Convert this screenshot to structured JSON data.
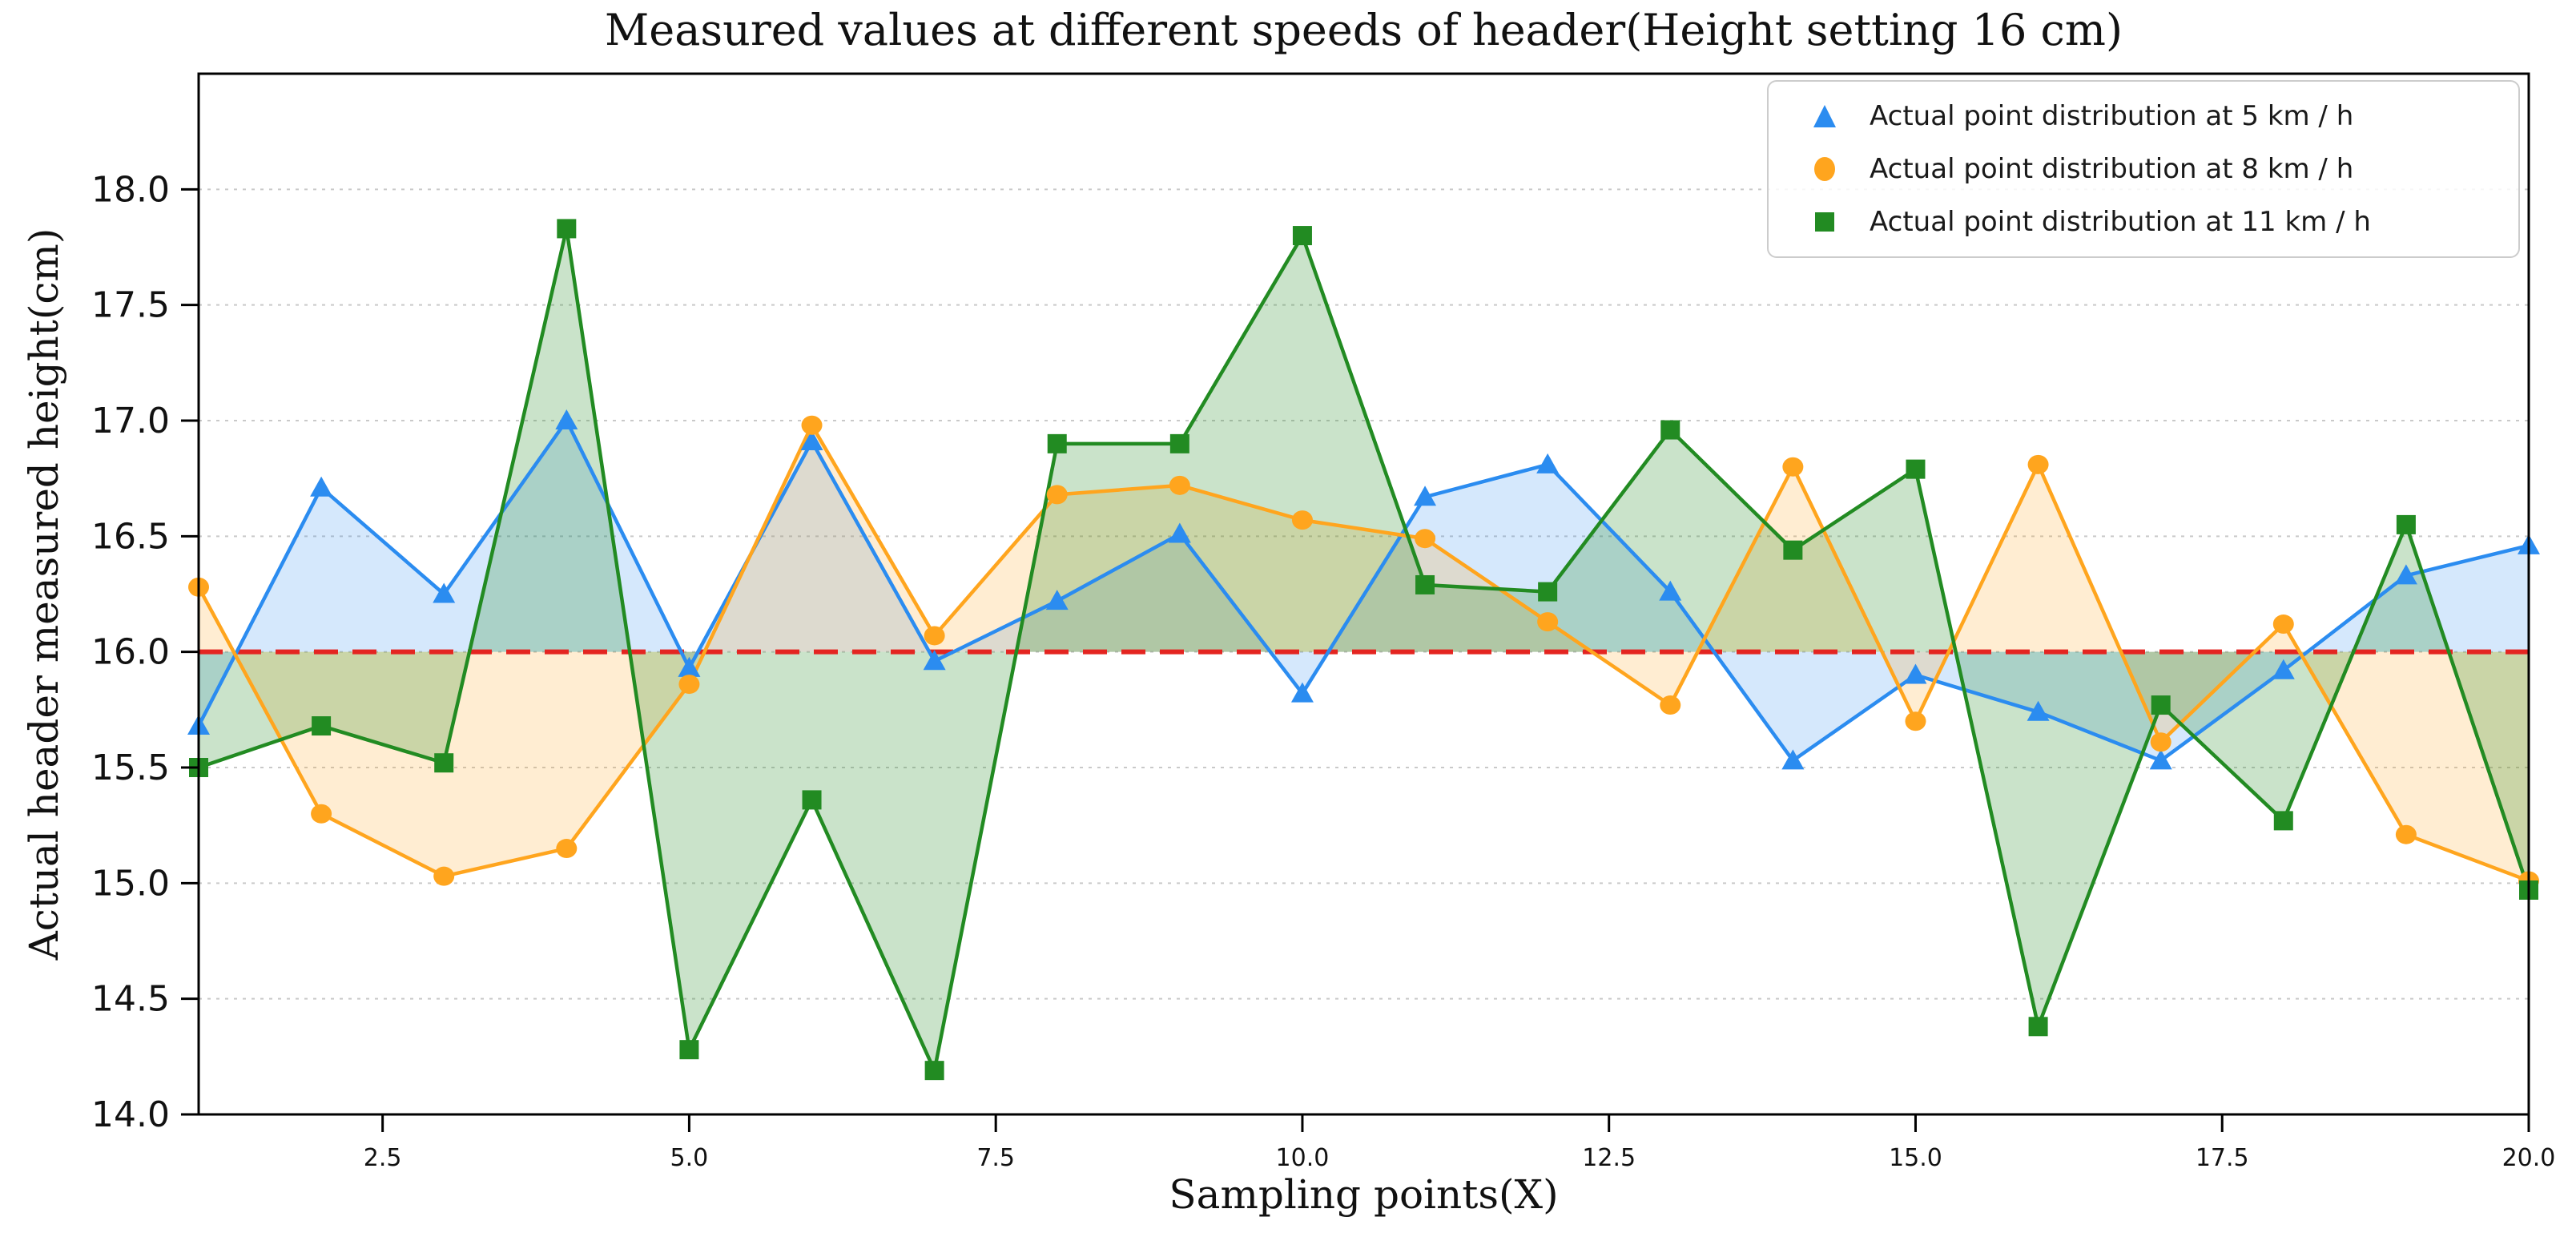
{
  "chart_data": {
    "type": "line",
    "title": "Measured values at different speeds of header(Height setting 16 cm)",
    "xlabel": "Sampling points(X)",
    "ylabel": "Actual header measured height(cm)",
    "xlim": [
      1,
      20
    ],
    "ylim": [
      14.0,
      18.5
    ],
    "x_ticks": [
      2.5,
      5.0,
      7.5,
      10.0,
      12.5,
      15.0,
      17.5,
      20.0
    ],
    "y_ticks": [
      14.0,
      14.5,
      15.0,
      15.5,
      16.0,
      16.5,
      17.0,
      17.5,
      18.0
    ],
    "grid": "horizontal-dashed",
    "grid_color": "#c9c9c9",
    "legend_position": "upper right",
    "reference_line": {
      "y": 16.0,
      "color": "#e42521",
      "style": "dashed"
    },
    "x": [
      1,
      2,
      3,
      4,
      5,
      6,
      7,
      8,
      9,
      10,
      11,
      12,
      13,
      14,
      15,
      16,
      17,
      18,
      19,
      20
    ],
    "series": [
      {
        "name": "Actual point distribution at 5 km / h",
        "color": "#2b8cf0",
        "marker": "triangle",
        "fill_to_reference": true,
        "fill_alpha": 0.2,
        "values": [
          15.68,
          16.71,
          16.25,
          17.0,
          15.93,
          16.91,
          15.96,
          16.22,
          16.51,
          15.82,
          16.67,
          16.81,
          16.26,
          15.53,
          15.9,
          15.74,
          15.53,
          15.92,
          16.33,
          16.46
        ]
      },
      {
        "name": "Actual point distribution at 8 km / h",
        "color": "#ffa51e",
        "marker": "circle",
        "fill_to_reference": true,
        "fill_alpha": 0.2,
        "values": [
          16.28,
          15.3,
          15.03,
          15.15,
          15.86,
          16.98,
          16.07,
          16.68,
          16.72,
          16.57,
          16.49,
          16.13,
          15.77,
          16.8,
          15.7,
          16.81,
          15.61,
          16.12,
          15.21,
          15.01
        ]
      },
      {
        "name": "Actual point distribution at 11 km / h",
        "color": "#228b22",
        "marker": "square",
        "fill_to_reference": true,
        "fill_alpha": 0.24,
        "values": [
          15.5,
          15.68,
          15.52,
          17.83,
          14.28,
          15.36,
          14.19,
          16.9,
          16.9,
          17.8,
          16.29,
          16.26,
          16.96,
          16.44,
          16.79,
          14.38,
          15.77,
          15.27,
          16.55,
          14.97
        ]
      }
    ]
  }
}
